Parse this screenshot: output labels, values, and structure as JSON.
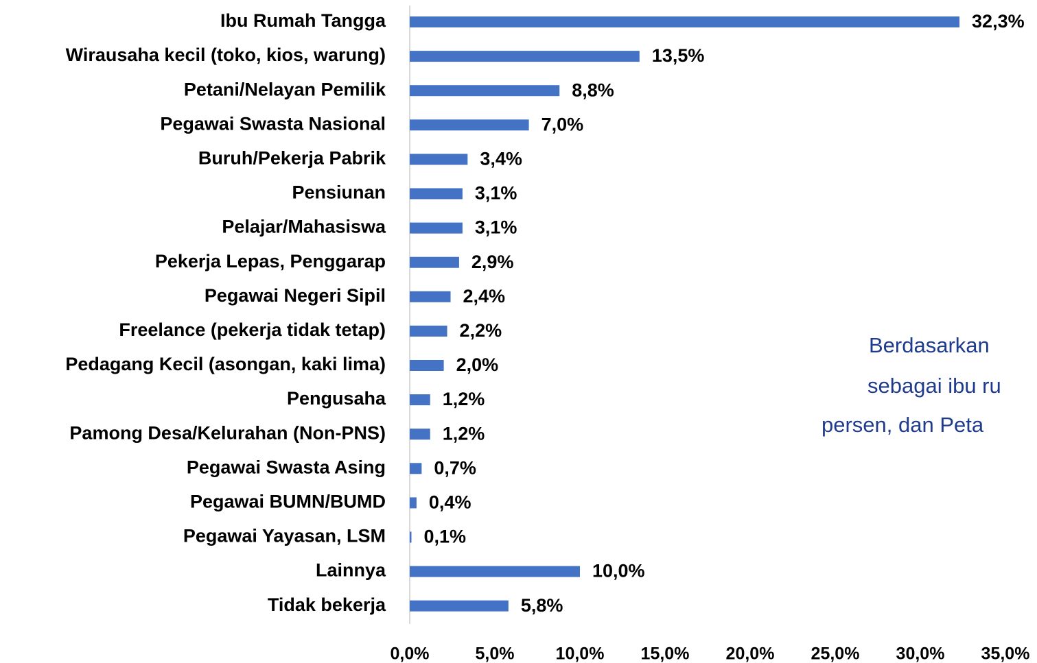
{
  "chart_data": {
    "type": "hbar",
    "categories": [
      "Ibu Rumah Tangga",
      "Wirausaha kecil (toko, kios, warung)",
      "Petani/Nelayan Pemilik",
      "Pegawai Swasta Nasional",
      "Buruh/Pekerja Pabrik",
      "Pensiunan",
      "Pelajar/Mahasiswa",
      "Pekerja Lepas, Penggarap",
      "Pegawai Negeri Sipil",
      "Freelance (pekerja tidak tetap)",
      "Pedagang Kecil (asongan, kaki lima)",
      "Pengusaha",
      "Pamong Desa/Kelurahan (Non-PNS)",
      "Pegawai Swasta Asing",
      "Pegawai BUMN/BUMD",
      "Pegawai Yayasan, LSM",
      "Lainnya",
      "Tidak bekerja"
    ],
    "values": [
      32.3,
      13.5,
      8.8,
      7.0,
      3.4,
      3.1,
      3.1,
      2.9,
      2.4,
      2.2,
      2.0,
      1.2,
      1.2,
      0.7,
      0.4,
      0.1,
      10.0,
      5.8
    ],
    "value_labels": [
      "32,3%",
      "13,5%",
      "8,8%",
      "7,0%",
      "3,4%",
      "3,1%",
      "3,1%",
      "2,9%",
      "2,4%",
      "2,2%",
      "2,0%",
      "1,2%",
      "1,2%",
      "0,7%",
      "0,4%",
      "0,1%",
      "10,0%",
      "5,8%"
    ],
    "color": "#4472c4",
    "xlim": [
      0,
      35
    ],
    "xticks": [
      {
        "value": 0,
        "label": "0,0%"
      },
      {
        "value": 5,
        "label": "5,0%"
      },
      {
        "value": 10,
        "label": "10,0%"
      },
      {
        "value": 15,
        "label": "15,0%"
      },
      {
        "value": 20,
        "label": "20,0%"
      },
      {
        "value": 25,
        "label": "25,0%"
      },
      {
        "value": 30,
        "label": "30,0%"
      },
      {
        "value": 35,
        "label": "35,0%"
      }
    ],
    "annotations": [
      "Berdasarkan",
      "sebagai ibu ru",
      "persen, dan Peta"
    ]
  }
}
